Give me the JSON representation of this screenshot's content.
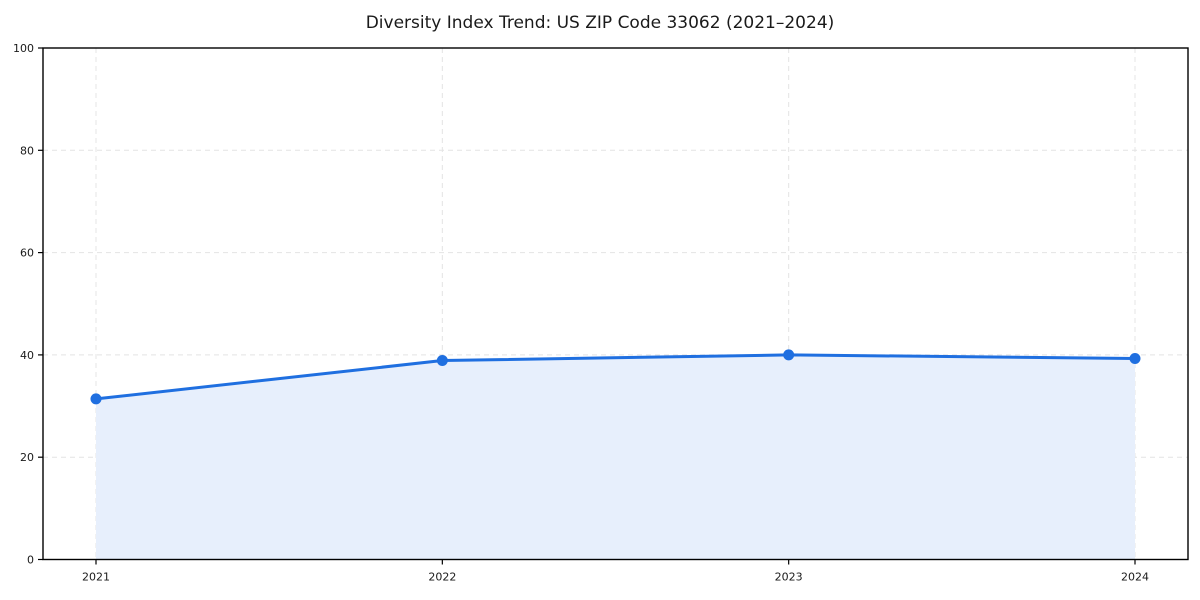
{
  "chart_data": {
    "type": "area",
    "title": "Diversity Index Trend: US ZIP Code 33062 (2021–2024)",
    "x": [
      "2021",
      "2022",
      "2023",
      "2024"
    ],
    "series": [
      {
        "name": "Diversity Index",
        "values": [
          31.4,
          38.9,
          40.0,
          39.3
        ]
      }
    ],
    "xlabel": "",
    "ylabel": "",
    "ylim": [
      0,
      100
    ],
    "yticks": [
      0,
      20,
      40,
      60,
      80,
      100
    ],
    "grid": true,
    "grid_style": "dashed",
    "legend_position": "none",
    "marker": "circle",
    "colors": {
      "line": "#1f6fe0",
      "marker": "#1f6fe0",
      "fill": "#e7effc",
      "grid": "#e4e4e4",
      "axis": "#000000",
      "text": "#1a1a1a"
    }
  }
}
